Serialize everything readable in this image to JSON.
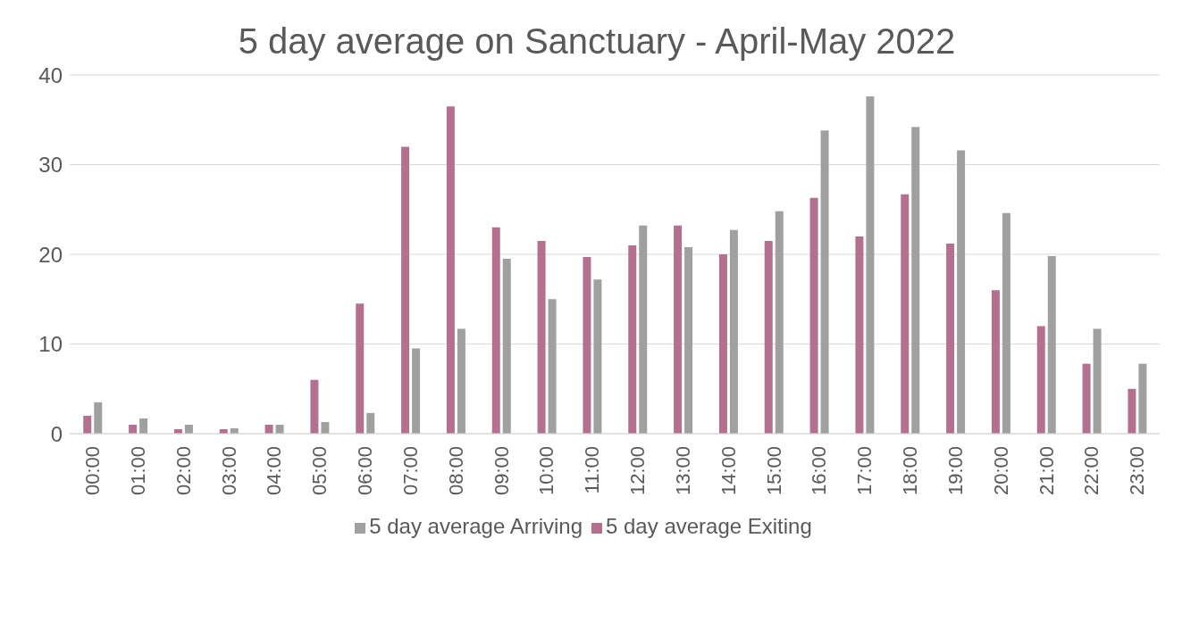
{
  "chart_data": {
    "type": "bar",
    "title": "5 day average on Sanctuary - April-May 2022",
    "categories": [
      "00:00",
      "01:00",
      "02:00",
      "03:00",
      "04:00",
      "05:00",
      "06:00",
      "07:00",
      "08:00",
      "09:00",
      "10:00",
      "11:00",
      "12:00",
      "13:00",
      "14:00",
      "15:00",
      "16:00",
      "17:00",
      "18:00",
      "19:00",
      "20:00",
      "21:00",
      "22:00",
      "23:00"
    ],
    "series": [
      {
        "name": "5 day average  Exiting",
        "color": "#b3708f",
        "values": [
          2,
          1,
          0.5,
          0.5,
          1,
          6,
          14.5,
          32,
          36.5,
          23,
          21.5,
          19.7,
          21,
          23.2,
          20,
          21.5,
          26.3,
          22,
          26.7,
          21.2,
          16,
          12,
          7.8,
          5
        ]
      },
      {
        "name": "5 day average  Arriving",
        "color": "#a0a0a0",
        "values": [
          3.5,
          1.7,
          1,
          0.6,
          1,
          1.3,
          2.3,
          9.5,
          11.7,
          19.5,
          15,
          17.2,
          23.2,
          20.8,
          22.7,
          24.8,
          33.8,
          37.6,
          34.2,
          31.6,
          24.6,
          19.8,
          11.7,
          7.8
        ]
      }
    ],
    "ylim": [
      0,
      40
    ],
    "yticks": [
      0,
      10,
      20,
      30,
      40
    ],
    "grid": "y",
    "legend": "bottom"
  }
}
